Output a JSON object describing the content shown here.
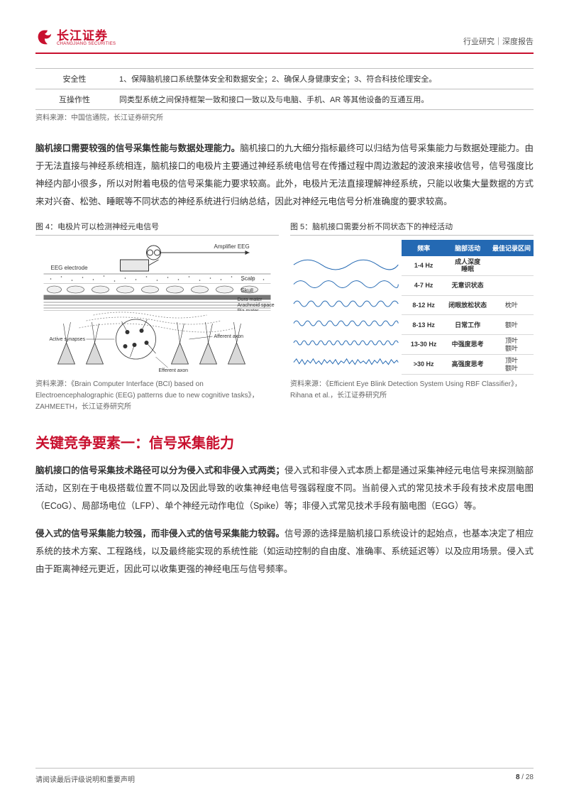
{
  "header": {
    "logo_cn": "长江证券",
    "logo_en": "CHANGJIANG SECURITIES",
    "right": "行业研究｜深度报告"
  },
  "top_table": {
    "rows": [
      {
        "label": "安全性",
        "text": "1、保障脑机接口系统整体安全和数据安全；2、确保人身健康安全；3、符合科技伦理安全。"
      },
      {
        "label": "互操作性",
        "text": "同类型系统之间保持框架一致和接口一致以及与电脑、手机、AR 等其他设备的互通互用。"
      }
    ],
    "source": "资料来源：中国信通院，长江证券研究所"
  },
  "para1": {
    "bold": "脑机接口需要较强的信号采集性能与数据处理能力。",
    "rest": "脑机接口的九大细分指标最终可以归结为信号采集能力与数据处理能力。由于无法直接与神经系统相连，脑机接口的电极片主要通过神经系统电信号在传播过程中周边激起的波浪来接收信号，信号强度比神经内部小很多，所以对附着电极的信号采集能力要求较高。此外，电极片无法直接理解神经系统，只能以收集大量数据的方式来对兴奋、松弛、睡眠等不同状态的神经系统进行归纳总结，因此对神经元电信号分析准确度的要求较高。"
  },
  "fig4": {
    "title": "图 4：电极片可以检测神经元电信号",
    "label_amp": "Amplifier EEG",
    "label_electrode": "EEG electrode",
    "label_scalp": "Scalp",
    "label_skull": "Skull",
    "label_dura": "Dura mater",
    "label_arach": "Arachnoid space",
    "label_pia": "Pia mater",
    "label_active": "Active synapses",
    "label_afferent": "Afferent axon",
    "label_efferent": "Efferent axon",
    "source": "资料来源：《Brain Computer Interface (BCI) based on Electroencephalographic (EEG) patterns due to new cognitive tasks》，ZAHMEETH，长江证券研究所"
  },
  "fig5": {
    "title": "图 5：脑机接口需要分析不同状态下的神经活动",
    "headers": [
      "频率",
      "脑部活动",
      "最佳记录区间"
    ],
    "rows": [
      {
        "hz": "1-4 Hz",
        "act": "成人深度\n睡眠",
        "rec": ""
      },
      {
        "hz": "4-7 Hz",
        "act": "无意识状态",
        "rec": ""
      },
      {
        "hz": "8-12 Hz",
        "act": "闭眼放松状态",
        "rec": "枕叶"
      },
      {
        "hz": "8-13 Hz",
        "act": "日常工作",
        "rec": "额叶"
      },
      {
        "hz": "13-30 Hz",
        "act": "中强度思考",
        "rec": "顶叶\n额叶"
      },
      {
        "hz": ">30 Hz",
        "act": "高强度思考",
        "rec": "顶叶\n额叶"
      }
    ],
    "wave_colors": [
      "#1f77b4",
      "#1f77b4",
      "#1f77b4",
      "#1f77b4",
      "#1f77b4",
      "#1f77b4"
    ],
    "source": "资料来源：《Efficient Eye Blink Detection System Using RBF Classifier》，Rihana et al.，长江证券研究所"
  },
  "section_title": "关键竞争要素一：信号采集能力",
  "para2": {
    "bold": "脑机接口的信号采集技术路径可以分为侵入式和非侵入式两类；",
    "rest": "侵入式和非侵入式本质上都是通过采集神经元电信号来探测脑部活动，区别在于电极搭载位置不同以及因此导致的收集神经电信号强弱程度不同。当前侵入式的常见技术手段有技术皮层电图（ECoG）、局部场电位（LFP）、单个神经元动作电位（Spike）等；非侵入式常见技术手段有脑电图（EGG）等。"
  },
  "para3": {
    "bold": "侵入式的信号采集能力较强，而非侵入式的信号采集能力较弱。",
    "rest": "信号源的选择是脑机接口系统设计的起始点，也基本决定了相应系统的技术方案、工程路线，以及最终能实现的系统性能（如运动控制的自由度、准确率、系统延迟等）以及应用场景。侵入式由于距离神经元更近，因此可以收集更强的神经电压与信号频率。"
  },
  "footer": {
    "left": "请阅读最后评级说明和重要声明",
    "page_current": "8",
    "page_sep": " / ",
    "page_total": "28"
  },
  "style": {
    "accent": "#c8102e",
    "table_header_bg": "#2469b3",
    "text_color": "#333333",
    "muted": "#666666",
    "rule": "#bfbfbf"
  }
}
